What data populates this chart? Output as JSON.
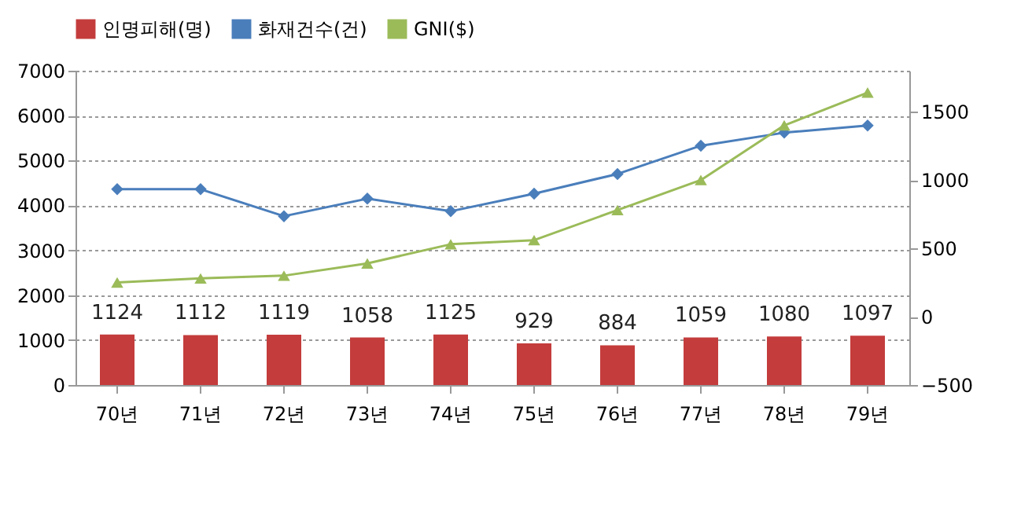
{
  "chart_data": {
    "type": "bar",
    "categories": [
      "70년",
      "71년",
      "72년",
      "73년",
      "74년",
      "75년",
      "76년",
      "77년",
      "78년",
      "79년"
    ],
    "series": [
      {
        "name": "인명피해(명)",
        "color": "#c43c3c",
        "values": [
          1124,
          1112,
          1119,
          1058,
          1125,
          929,
          884,
          1059,
          1080,
          1097
        ],
        "data_labels": true
      },
      {
        "name": "화재건수(건)",
        "type": "line",
        "color": "#4a7ebb",
        "marker": "diamond",
        "values": [
          4360,
          4360,
          3760,
          4150,
          3870,
          4260,
          4700,
          5330,
          5620,
          5780
        ]
      },
      {
        "name": "GNI($)",
        "type": "line",
        "color": "#9bbb59",
        "marker": "triangle",
        "axis": "y2",
        "values": [
          250,
          280,
          300,
          390,
          530,
          560,
          780,
          1000,
          1400,
          1640
        ]
      }
    ],
    "ylim": [
      0,
      7000
    ],
    "yticks": [
      0,
      1000,
      2000,
      3000,
      4000,
      5000,
      6000,
      7000
    ],
    "y2lim": [
      -500,
      1800
    ],
    "y2ticks": [
      -500,
      0,
      500,
      1000,
      1500
    ],
    "grid": "y",
    "legend": "top",
    "line_style": "solid"
  }
}
